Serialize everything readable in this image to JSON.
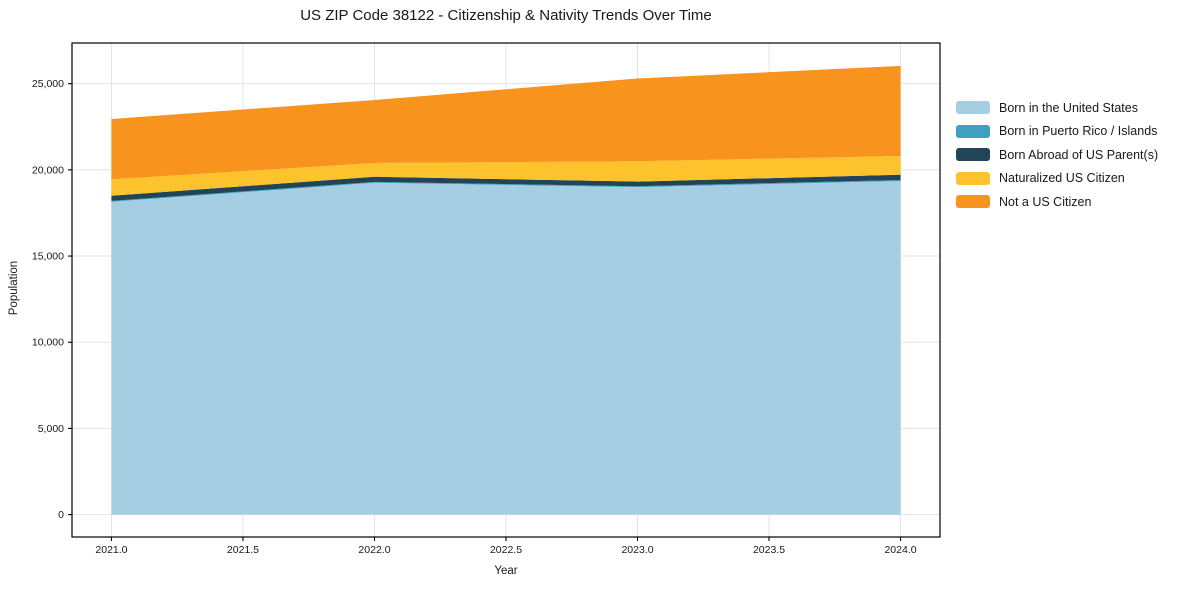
{
  "title": "US ZIP Code 38122 - Citizenship & Nativity Trends Over Time",
  "chart_data": {
    "type": "area",
    "stacked": true,
    "title": "US ZIP Code 38122 - Citizenship & Nativity Trends Over Time",
    "xlabel": "Year",
    "ylabel": "Population",
    "x": [
      2021,
      2022,
      2023,
      2024
    ],
    "series": [
      {
        "name": "Born in the United States",
        "color": "#a6cee3",
        "values": [
          18150,
          19250,
          19000,
          19350
        ]
      },
      {
        "name": "Born in Puerto Rico / Islands",
        "color": "#3fa0c2",
        "values": [
          50,
          50,
          50,
          60
        ]
      },
      {
        "name": "Born Abroad of US Parent(s)",
        "color": "#1f4557",
        "values": [
          300,
          300,
          270,
          310
        ]
      },
      {
        "name": "Naturalized US Citizen",
        "color": "#fcc32d",
        "values": [
          950,
          800,
          1180,
          1080
        ]
      },
      {
        "name": "Not a US Citizen",
        "color": "#f8941e",
        "values": [
          3500,
          3650,
          4800,
          5230
        ]
      }
    ],
    "x_ticks": [
      2021.0,
      2021.5,
      2022.0,
      2022.5,
      2023.0,
      2023.5,
      2024.0
    ],
    "x_tick_labels": [
      "2021.0",
      "2021.5",
      "2022.0",
      "2022.5",
      "2023.0",
      "2023.5",
      "2024.0"
    ],
    "y_ticks": [
      0,
      5000,
      10000,
      15000,
      20000,
      25000
    ],
    "y_tick_labels": [
      "0",
      "5,000",
      "10,000",
      "15,000",
      "20,000",
      "25,000"
    ],
    "xlim": [
      2020.85,
      2024.15
    ],
    "ylim": [
      -1300,
      27360
    ],
    "grid": true,
    "legend_position": "right",
    "colors": {
      "grid": "#e3e3e3",
      "spine": "#000000",
      "tick_label": "#15191c",
      "background": "#ffffff"
    }
  }
}
